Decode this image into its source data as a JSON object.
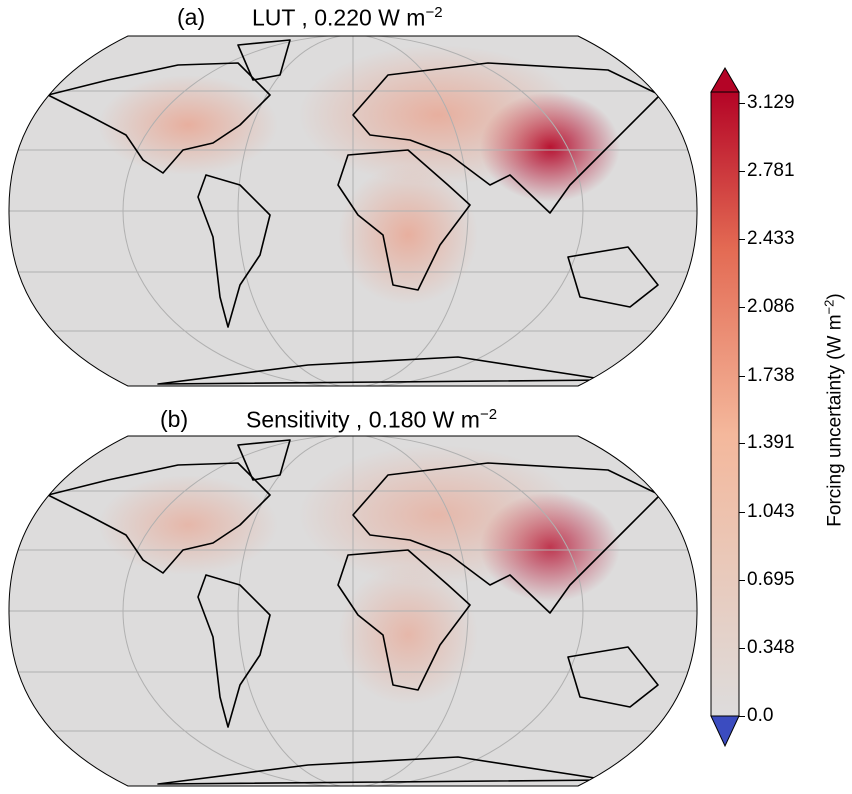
{
  "panels": [
    {
      "letter": "(a)",
      "method": "LUT",
      "value": "0.220",
      "unit": "W m",
      "unit_exp": "−2",
      "hotspot_strength": 1.0
    },
    {
      "letter": "(b)",
      "method": "Sensitivity",
      "value": "0.180",
      "unit": "W m",
      "unit_exp": "−2",
      "hotspot_strength": 0.82
    }
  ],
  "colorbar": {
    "label": "Forcing uncertainty (W m",
    "label_exp": "−2",
    "label_close": ")",
    "ticks": [
      "0.0",
      "0.348",
      "0.695",
      "1.043",
      "1.391",
      "1.738",
      "2.086",
      "2.433",
      "2.781",
      "3.129"
    ],
    "min": 0.0,
    "max": 3.129,
    "colors": {
      "low": "#dddcdc",
      "mid": "#f4a98a",
      "high": "#b40426",
      "under": "#3b4cc0"
    }
  }
}
